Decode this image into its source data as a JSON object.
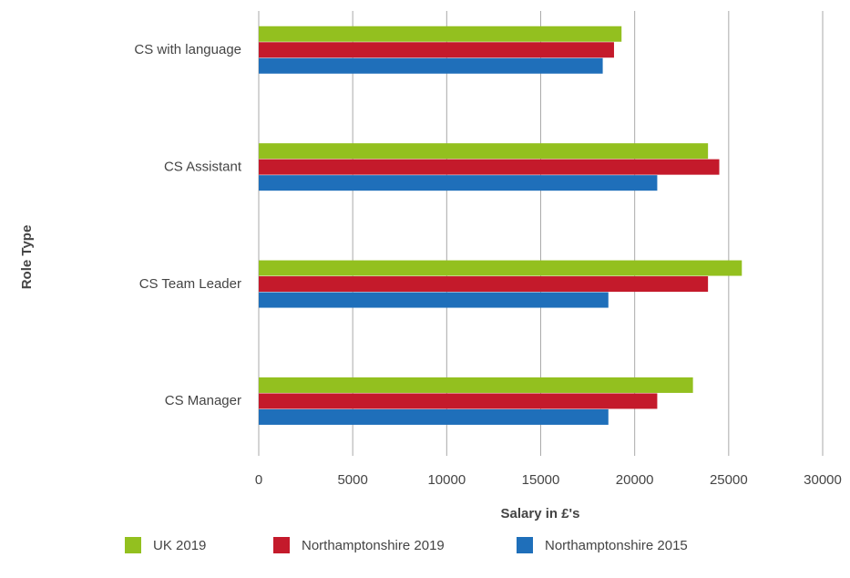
{
  "chart_data": {
    "type": "hbar",
    "categories": [
      "CS with language",
      "CS Assistant",
      "CS Team Leader",
      "CS Manager"
    ],
    "series": [
      {
        "name": "UK 2019",
        "color": "#93c01f",
        "values": [
          19300,
          23900,
          25700,
          23100
        ]
      },
      {
        "name": "Northamptonshire 2019",
        "color": "#c41a2b",
        "values": [
          18900,
          24500,
          23900,
          21200
        ]
      },
      {
        "name": "Northamptonshire 2015",
        "color": "#1f6fba",
        "values": [
          18300,
          21200,
          18600,
          18600
        ]
      }
    ],
    "xlabel": "Salary in £'s",
    "ylabel": "Role Type",
    "xlim": [
      0,
      30000
    ],
    "xticks": [
      0,
      5000,
      10000,
      15000,
      20000,
      25000,
      30000
    ],
    "grid": true,
    "legend": "bottom"
  }
}
